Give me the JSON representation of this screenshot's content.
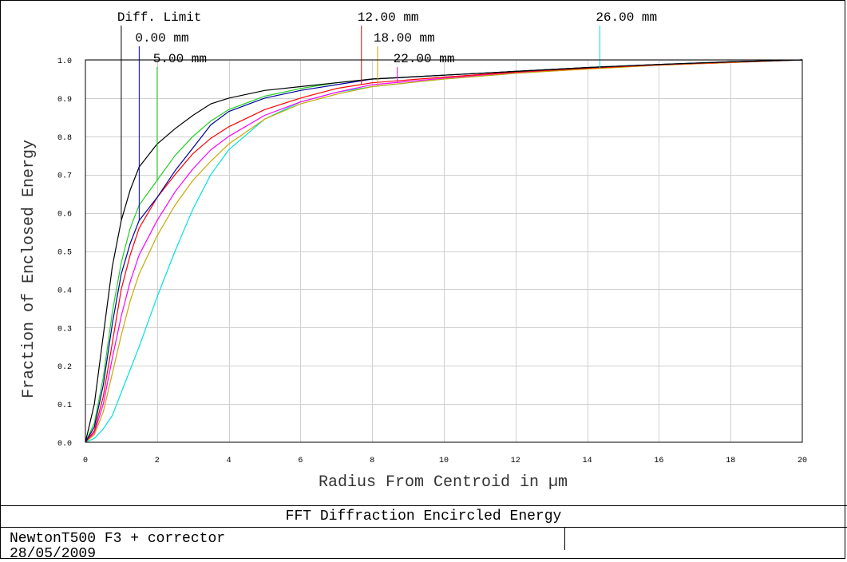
{
  "footer": {
    "title": "FFT Diffraction Encircled Energy",
    "lines": [
      "NewtonT500 F3 + corrector",
      "28/05/2009"
    ]
  },
  "chart_data": {
    "type": "line",
    "title": "FFT Diffraction Encircled Energy",
    "xlabel": "Radius From Centroid in µm",
    "ylabel": "Fraction of Enclosed Energy",
    "xlim": [
      0,
      20
    ],
    "ylim": [
      0,
      1.0
    ],
    "x_ticks": [
      0,
      2,
      4,
      6,
      8,
      10,
      12,
      14,
      16,
      18,
      20
    ],
    "y_ticks": [
      0.0,
      0.1,
      0.2,
      0.3,
      0.4,
      0.5,
      0.6,
      0.7,
      0.8,
      0.9,
      1.0
    ],
    "y_tick_labels": [
      "0.0",
      "0.1",
      "0.2",
      "0.3",
      "0.4",
      "0.5",
      "0.6",
      "0.7",
      "0.8",
      "0.9",
      "1.0"
    ],
    "grid": true,
    "series": [
      {
        "name": "Diff. Limit",
        "color": "#000000",
        "marker_x": 1.0,
        "x": [
          0,
          0.25,
          0.5,
          0.75,
          1.0,
          1.25,
          1.5,
          2,
          2.5,
          3,
          3.5,
          4,
          5,
          6,
          7,
          8,
          10,
          12,
          14,
          16,
          18,
          20
        ],
        "y": [
          0,
          0.1,
          0.28,
          0.46,
          0.58,
          0.66,
          0.72,
          0.78,
          0.82,
          0.855,
          0.885,
          0.9,
          0.92,
          0.93,
          0.94,
          0.95,
          0.96,
          0.97,
          0.98,
          0.988,
          0.995,
          1.0
        ]
      },
      {
        "name": "0.00 mm",
        "color": "#0000a0",
        "marker_x": 1.5,
        "x": [
          0,
          0.25,
          0.5,
          0.75,
          1.0,
          1.25,
          1.5,
          2,
          2.5,
          3,
          3.5,
          4,
          5,
          6,
          7,
          8,
          10,
          12,
          14,
          16,
          18,
          20
        ],
        "y": [
          0,
          0.04,
          0.15,
          0.31,
          0.44,
          0.52,
          0.58,
          0.64,
          0.71,
          0.77,
          0.83,
          0.865,
          0.9,
          0.92,
          0.935,
          0.95,
          0.96,
          0.97,
          0.98,
          0.988,
          0.995,
          1.0
        ]
      },
      {
        "name": "5.00 mm",
        "color": "#20d020",
        "marker_x": 2.0,
        "x": [
          0,
          0.25,
          0.5,
          0.75,
          1.0,
          1.25,
          1.5,
          2,
          2.5,
          3,
          3.5,
          4,
          5,
          6,
          7,
          8,
          10,
          12,
          14,
          16,
          18,
          20
        ],
        "y": [
          0,
          0.05,
          0.17,
          0.34,
          0.47,
          0.56,
          0.62,
          0.685,
          0.75,
          0.8,
          0.84,
          0.87,
          0.905,
          0.925,
          0.94,
          0.95,
          0.96,
          0.97,
          0.98,
          0.988,
          0.995,
          1.0
        ]
      },
      {
        "name": "12.00 mm",
        "color": "#ff0000",
        "marker_x": 7.7,
        "x": [
          0,
          0.25,
          0.5,
          0.75,
          1.0,
          1.25,
          1.5,
          2,
          2.5,
          3,
          3.5,
          4,
          5,
          6,
          7,
          8,
          10,
          12,
          14,
          16,
          18,
          20
        ],
        "y": [
          0,
          0.03,
          0.12,
          0.26,
          0.4,
          0.49,
          0.56,
          0.64,
          0.7,
          0.755,
          0.795,
          0.825,
          0.87,
          0.9,
          0.925,
          0.94,
          0.955,
          0.968,
          0.978,
          0.987,
          0.994,
          1.0
        ]
      },
      {
        "name": "18.00 mm",
        "color": "#c8a800",
        "marker_x": 8.15,
        "x": [
          0,
          0.25,
          0.5,
          0.75,
          1.0,
          1.25,
          1.5,
          2,
          2.5,
          3,
          3.5,
          4,
          5,
          6,
          7,
          8,
          10,
          12,
          14,
          16,
          18,
          20
        ],
        "y": [
          0,
          0.02,
          0.08,
          0.18,
          0.28,
          0.37,
          0.44,
          0.54,
          0.62,
          0.685,
          0.735,
          0.78,
          0.845,
          0.885,
          0.91,
          0.93,
          0.95,
          0.965,
          0.976,
          0.986,
          0.993,
          1.0
        ]
      },
      {
        "name": "22.00 mm",
        "color": "#ff00ff",
        "marker_x": 8.7,
        "x": [
          0,
          0.25,
          0.5,
          0.75,
          1.0,
          1.25,
          1.5,
          2,
          2.5,
          3,
          3.5,
          4,
          5,
          6,
          7,
          8,
          10,
          12,
          14,
          16,
          18,
          20
        ],
        "y": [
          0,
          0.025,
          0.1,
          0.22,
          0.33,
          0.42,
          0.49,
          0.58,
          0.655,
          0.715,
          0.765,
          0.8,
          0.855,
          0.89,
          0.915,
          0.935,
          0.952,
          0.966,
          0.977,
          0.986,
          0.993,
          1.0
        ]
      },
      {
        "name": "26.00 mm",
        "color": "#00e0e0",
        "marker_x": 14.35,
        "x": [
          0,
          0.25,
          0.5,
          0.75,
          1.0,
          1.25,
          1.5,
          2,
          2.5,
          3,
          3.5,
          4,
          5,
          6,
          7,
          8,
          10,
          12,
          14,
          16,
          18,
          20
        ],
        "y": [
          0,
          0.01,
          0.035,
          0.07,
          0.13,
          0.19,
          0.25,
          0.38,
          0.5,
          0.61,
          0.7,
          0.765,
          0.845,
          0.89,
          0.915,
          0.93,
          0.95,
          0.965,
          0.977,
          0.987,
          0.994,
          1.0
        ]
      }
    ]
  }
}
